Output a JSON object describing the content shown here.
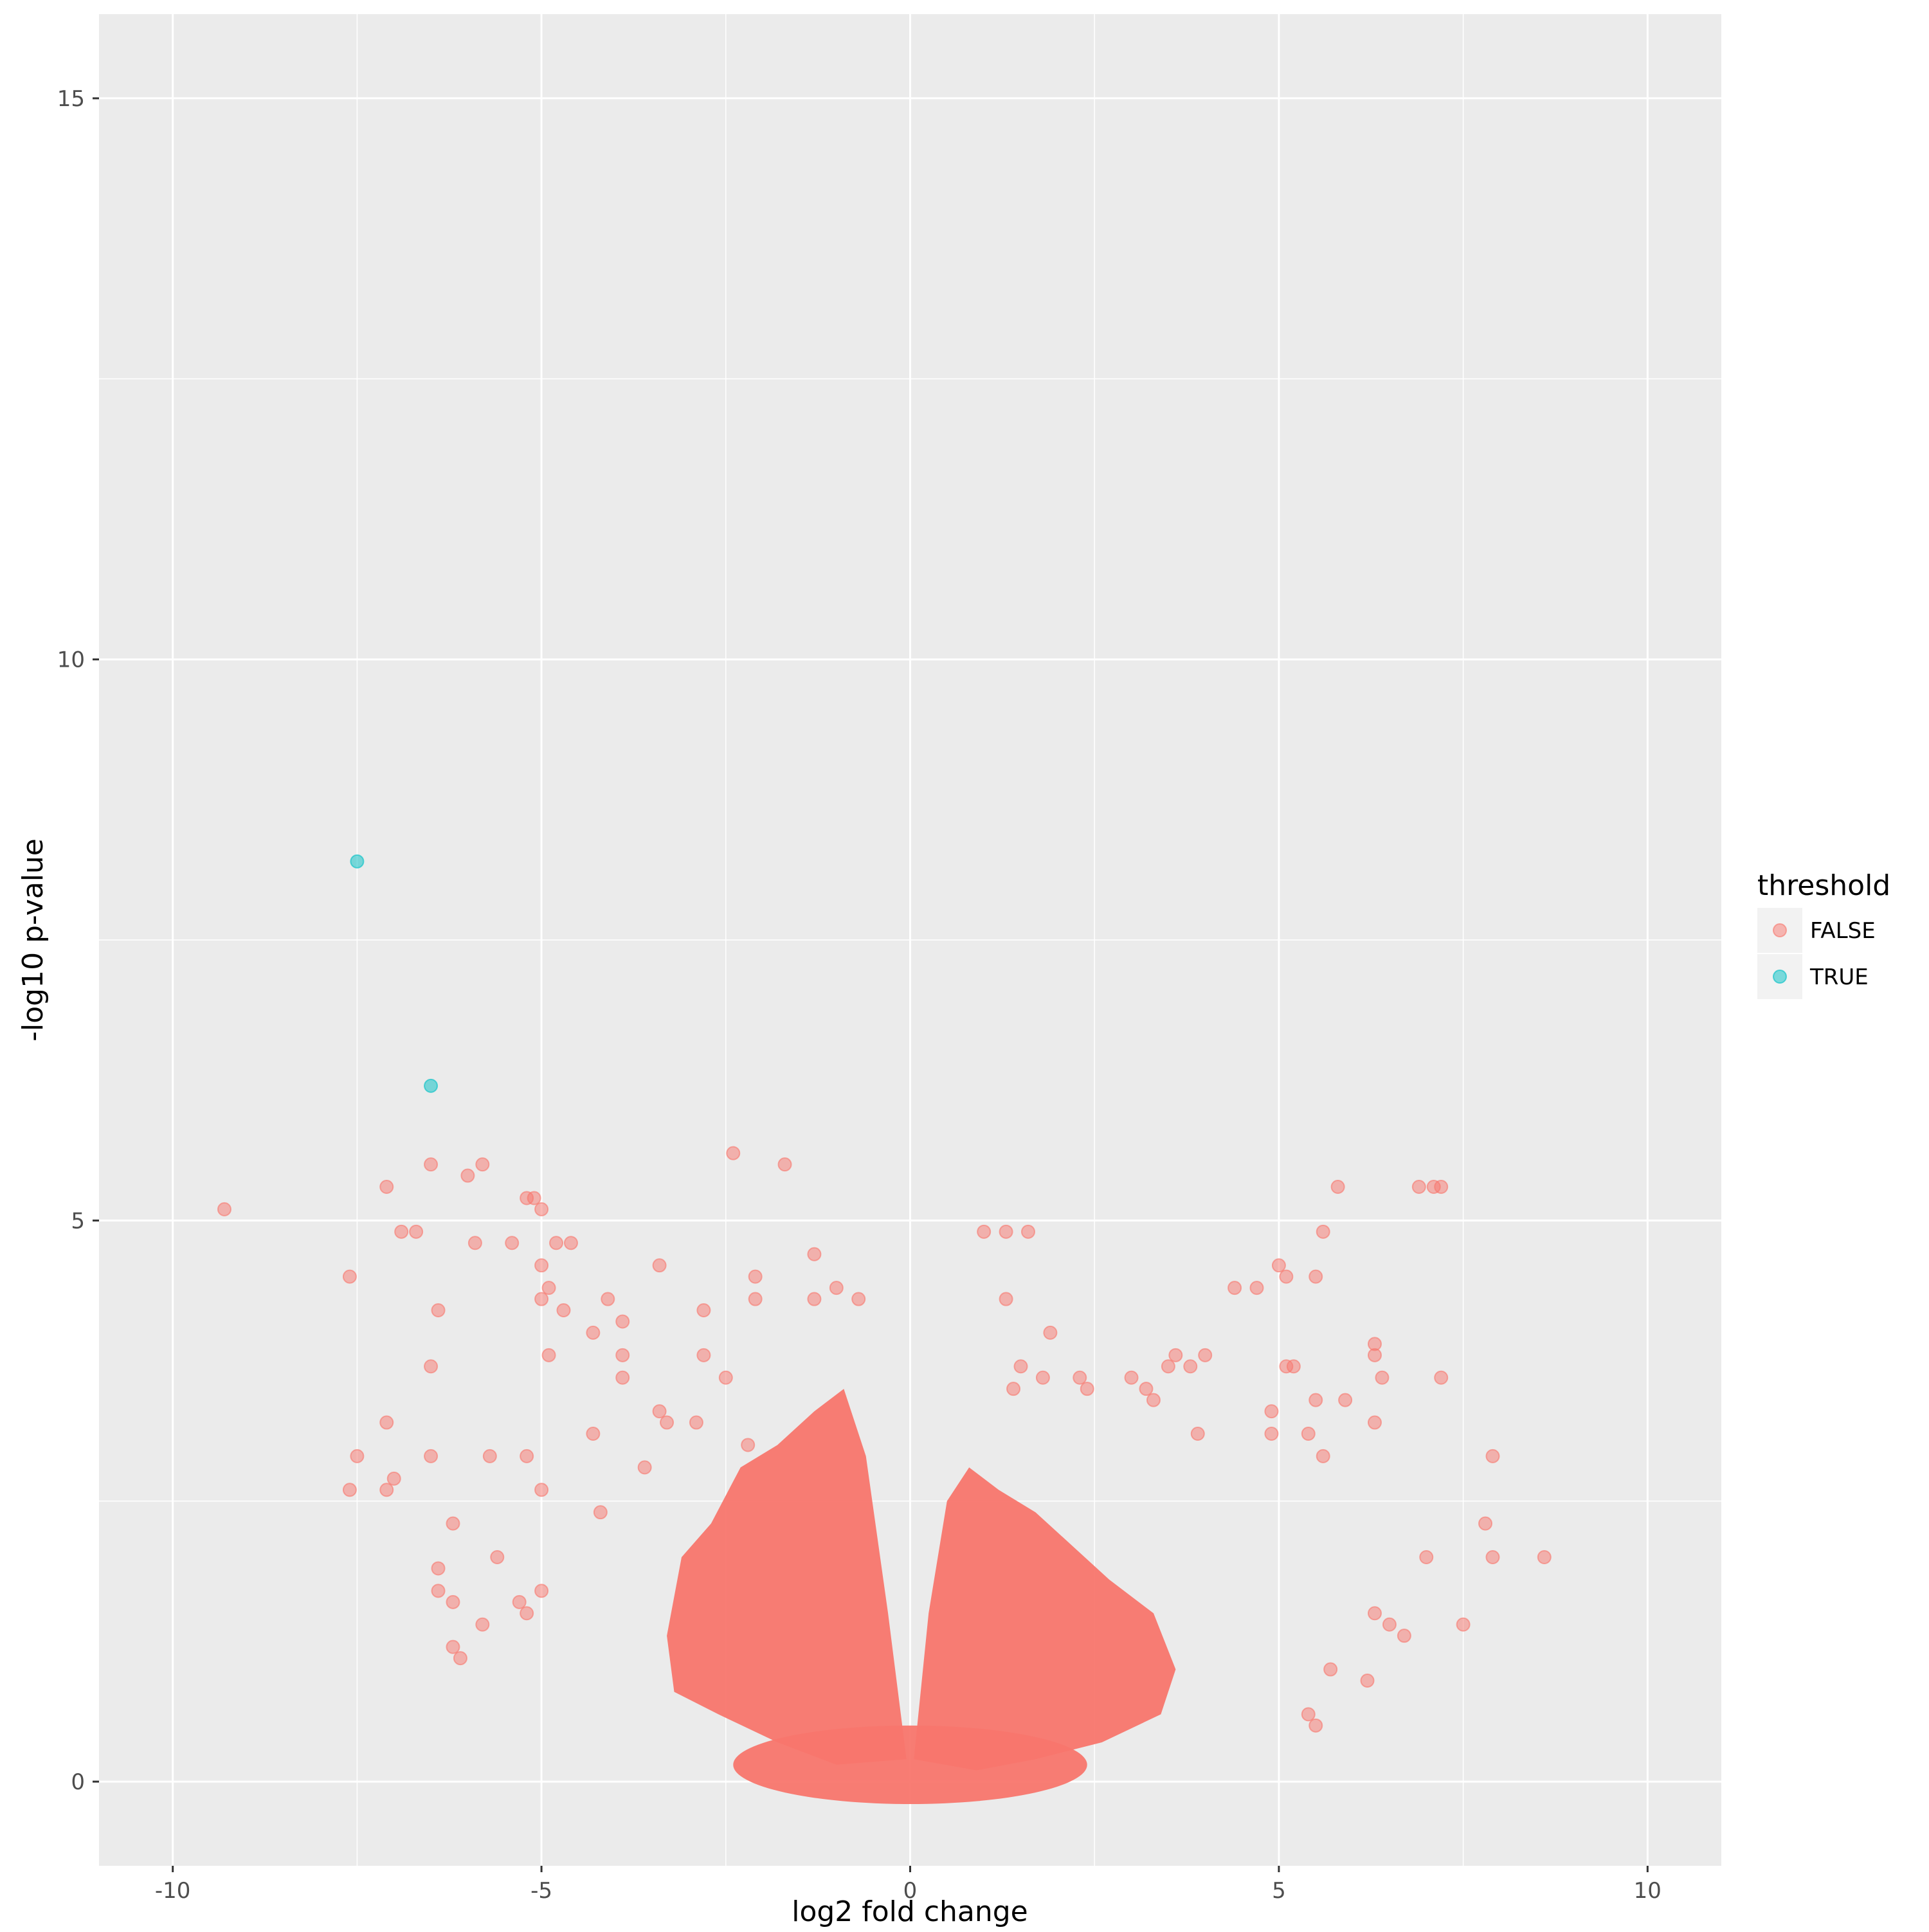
{
  "chart_data": {
    "type": "scatter",
    "xlabel": "log2 fold change",
    "ylabel": "-log10 p-value",
    "xlim": [
      -11,
      11
    ],
    "ylim": [
      -0.75,
      15.75
    ],
    "x_ticks": [
      -10,
      -5,
      0,
      5,
      10
    ],
    "x_tick_labels": [
      "-10",
      "-5",
      "0",
      "5",
      "10"
    ],
    "y_ticks": [
      0,
      5,
      10,
      15
    ],
    "y_tick_labels": [
      "0",
      "5",
      "10",
      "15"
    ],
    "grid": true,
    "legend": {
      "title": "threshold",
      "placement": "right",
      "entries": [
        "FALSE",
        "TRUE"
      ]
    },
    "colors": {
      "FALSE": "#F8766D",
      "TRUE": "#00BFC4",
      "panel": "#EBEBEB",
      "grid": "#FFFFFF"
    },
    "series": [
      {
        "name": "TRUE",
        "points": [
          [
            -7.5,
            8.2
          ],
          [
            -6.5,
            6.2
          ]
        ]
      },
      {
        "name": "FALSE",
        "points": [
          [
            -9.3,
            5.1
          ],
          [
            -7.6,
            4.5
          ],
          [
            -7.5,
            2.9
          ],
          [
            -7.6,
            2.6
          ],
          [
            -7.1,
            2.6
          ],
          [
            -7.0,
            2.7
          ],
          [
            -7.1,
            3.2
          ],
          [
            -7.1,
            5.3
          ],
          [
            -6.9,
            4.9
          ],
          [
            -6.7,
            4.9
          ],
          [
            -6.5,
            5.5
          ],
          [
            -6.0,
            5.4
          ],
          [
            -5.8,
            5.5
          ],
          [
            -5.9,
            4.8
          ],
          [
            -6.5,
            2.9
          ],
          [
            -6.5,
            3.7
          ],
          [
            -6.4,
            4.2
          ],
          [
            -5.4,
            4.8
          ],
          [
            -5.2,
            5.2
          ],
          [
            -5.1,
            5.2
          ],
          [
            -5.0,
            5.1
          ],
          [
            -5.0,
            4.6
          ],
          [
            -4.9,
            4.4
          ],
          [
            -4.8,
            4.8
          ],
          [
            -4.6,
            4.8
          ],
          [
            -4.9,
            3.8
          ],
          [
            -5.0,
            4.3
          ],
          [
            -4.7,
            4.2
          ],
          [
            -4.3,
            4.0
          ],
          [
            -4.1,
            4.3
          ],
          [
            -3.9,
            4.1
          ],
          [
            -3.9,
            3.8
          ],
          [
            -3.9,
            3.6
          ],
          [
            -3.4,
            4.6
          ],
          [
            -2.8,
            4.2
          ],
          [
            -2.4,
            5.6
          ],
          [
            -2.1,
            4.3
          ],
          [
            -2.1,
            4.5
          ],
          [
            -1.7,
            5.5
          ],
          [
            -1.3,
            4.3
          ],
          [
            -1.3,
            4.7
          ],
          [
            -1.0,
            4.4
          ],
          [
            -0.7,
            4.3
          ],
          [
            -2.8,
            3.8
          ],
          [
            -2.5,
            3.6
          ],
          [
            -3.4,
            3.3
          ],
          [
            -5.7,
            2.9
          ],
          [
            -5.2,
            2.9
          ],
          [
            -6.2,
            2.3
          ],
          [
            -6.2,
            1.6
          ],
          [
            -6.1,
            1.1
          ],
          [
            -6.2,
            1.2
          ],
          [
            -5.8,
            1.4
          ],
          [
            -6.4,
            1.9
          ],
          [
            -5.6,
            2.0
          ],
          [
            -6.4,
            1.7
          ],
          [
            -5.0,
            2.6
          ],
          [
            -5.3,
            1.6
          ],
          [
            -5.2,
            1.5
          ],
          [
            -5.0,
            1.7
          ],
          [
            -4.3,
            3.1
          ],
          [
            -4.2,
            2.4
          ],
          [
            -3.6,
            2.8
          ],
          [
            -3.3,
            3.2
          ],
          [
            -2.9,
            3.2
          ],
          [
            -2.2,
            3.0
          ],
          [
            7.2,
            5.3
          ],
          [
            6.9,
            5.3
          ],
          [
            7.1,
            5.3
          ],
          [
            5.8,
            5.3
          ],
          [
            5.6,
            4.9
          ],
          [
            5.0,
            4.6
          ],
          [
            5.1,
            4.5
          ],
          [
            5.5,
            4.5
          ],
          [
            4.4,
            4.4
          ],
          [
            4.7,
            4.4
          ],
          [
            6.3,
            3.9
          ],
          [
            6.3,
            3.8
          ],
          [
            6.4,
            3.6
          ],
          [
            7.2,
            3.6
          ],
          [
            5.1,
            3.7
          ],
          [
            5.2,
            3.7
          ],
          [
            5.5,
            3.4
          ],
          [
            5.9,
            3.4
          ],
          [
            6.3,
            3.2
          ],
          [
            7.9,
            2.9
          ],
          [
            7.8,
            2.3
          ],
          [
            7.9,
            2.0
          ],
          [
            8.6,
            2.0
          ],
          [
            7.0,
            2.0
          ],
          [
            7.5,
            1.4
          ],
          [
            6.7,
            1.3
          ],
          [
            6.5,
            1.4
          ],
          [
            6.3,
            1.5
          ],
          [
            6.2,
            0.9
          ],
          [
            5.7,
            1.0
          ],
          [
            5.4,
            0.6
          ],
          [
            5.5,
            0.5
          ],
          [
            4.9,
            3.3
          ],
          [
            4.9,
            3.1
          ],
          [
            5.4,
            3.1
          ],
          [
            5.6,
            2.9
          ],
          [
            4.0,
            3.8
          ],
          [
            3.6,
            3.8
          ],
          [
            3.5,
            3.7
          ],
          [
            3.8,
            3.7
          ],
          [
            3.2,
            3.5
          ],
          [
            3.3,
            3.4
          ],
          [
            3.0,
            3.6
          ],
          [
            1.0,
            4.9
          ],
          [
            1.3,
            4.9
          ],
          [
            1.6,
            4.9
          ],
          [
            1.3,
            4.3
          ],
          [
            1.9,
            4.0
          ],
          [
            1.5,
            3.7
          ],
          [
            1.4,
            3.5
          ],
          [
            2.3,
            3.6
          ],
          [
            2.4,
            3.5
          ],
          [
            1.8,
            3.6
          ],
          [
            3.9,
            3.1
          ]
        ]
      }
    ]
  }
}
